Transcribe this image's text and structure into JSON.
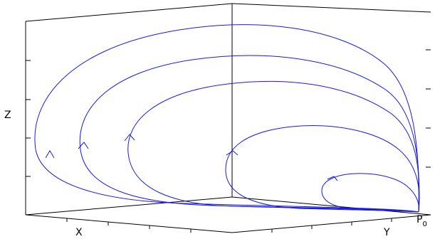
{
  "labels": {
    "x": "X",
    "y": "Y",
    "z": "Z",
    "point_main": "P",
    "point_sub": "0"
  },
  "colors": {
    "trajectory": "#1a1ae6",
    "axes": "#000000"
  },
  "trajectories": [
    {
      "name": "trajectory-1",
      "has_arrow": true
    },
    {
      "name": "trajectory-2",
      "has_arrow": true
    },
    {
      "name": "trajectory-3",
      "has_arrow": true
    },
    {
      "name": "trajectory-4",
      "has_arrow": true
    },
    {
      "name": "trajectory-5",
      "has_arrow": true
    }
  ]
}
